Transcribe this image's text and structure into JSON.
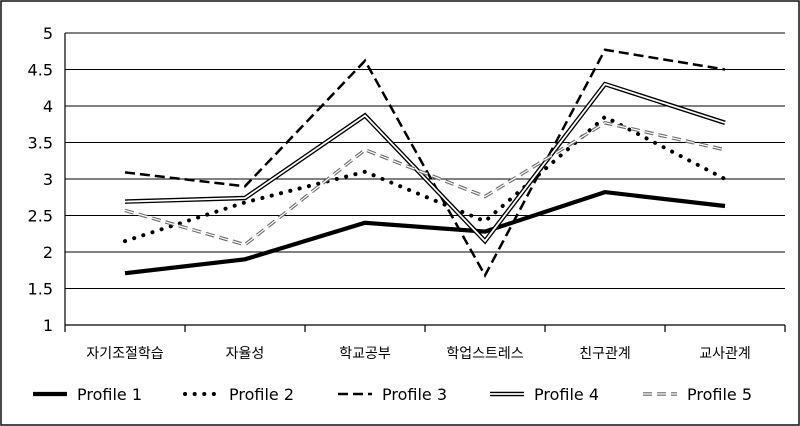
{
  "chart_data": {
    "type": "line",
    "categories": [
      "자기조절학습",
      "자율성",
      "학교공부",
      "학업스트레스",
      "친구관계",
      "교사관계"
    ],
    "ylim": [
      1,
      5
    ],
    "yticks": [
      1,
      1.5,
      2,
      2.5,
      3,
      3.5,
      4,
      4.5,
      5
    ],
    "grid": true,
    "legend": "bottom",
    "series": [
      {
        "name": "Profile 1",
        "style": "thick-solid",
        "values": [
          1.71,
          1.9,
          2.4,
          2.28,
          2.82,
          2.63
        ]
      },
      {
        "name": "Profile 2",
        "style": "dotted",
        "values": [
          2.15,
          2.68,
          3.1,
          2.42,
          3.85,
          3.0
        ]
      },
      {
        "name": "Profile 3",
        "style": "dashed",
        "values": [
          3.09,
          2.9,
          4.62,
          1.68,
          4.77,
          4.5
        ]
      },
      {
        "name": "Profile 4",
        "style": "double",
        "values": [
          2.69,
          2.74,
          3.87,
          2.15,
          4.3,
          3.77
        ]
      },
      {
        "name": "Profile 5",
        "style": "light-dashed-double",
        "values": [
          2.57,
          2.1,
          3.4,
          2.76,
          3.77,
          3.4
        ]
      }
    ]
  }
}
